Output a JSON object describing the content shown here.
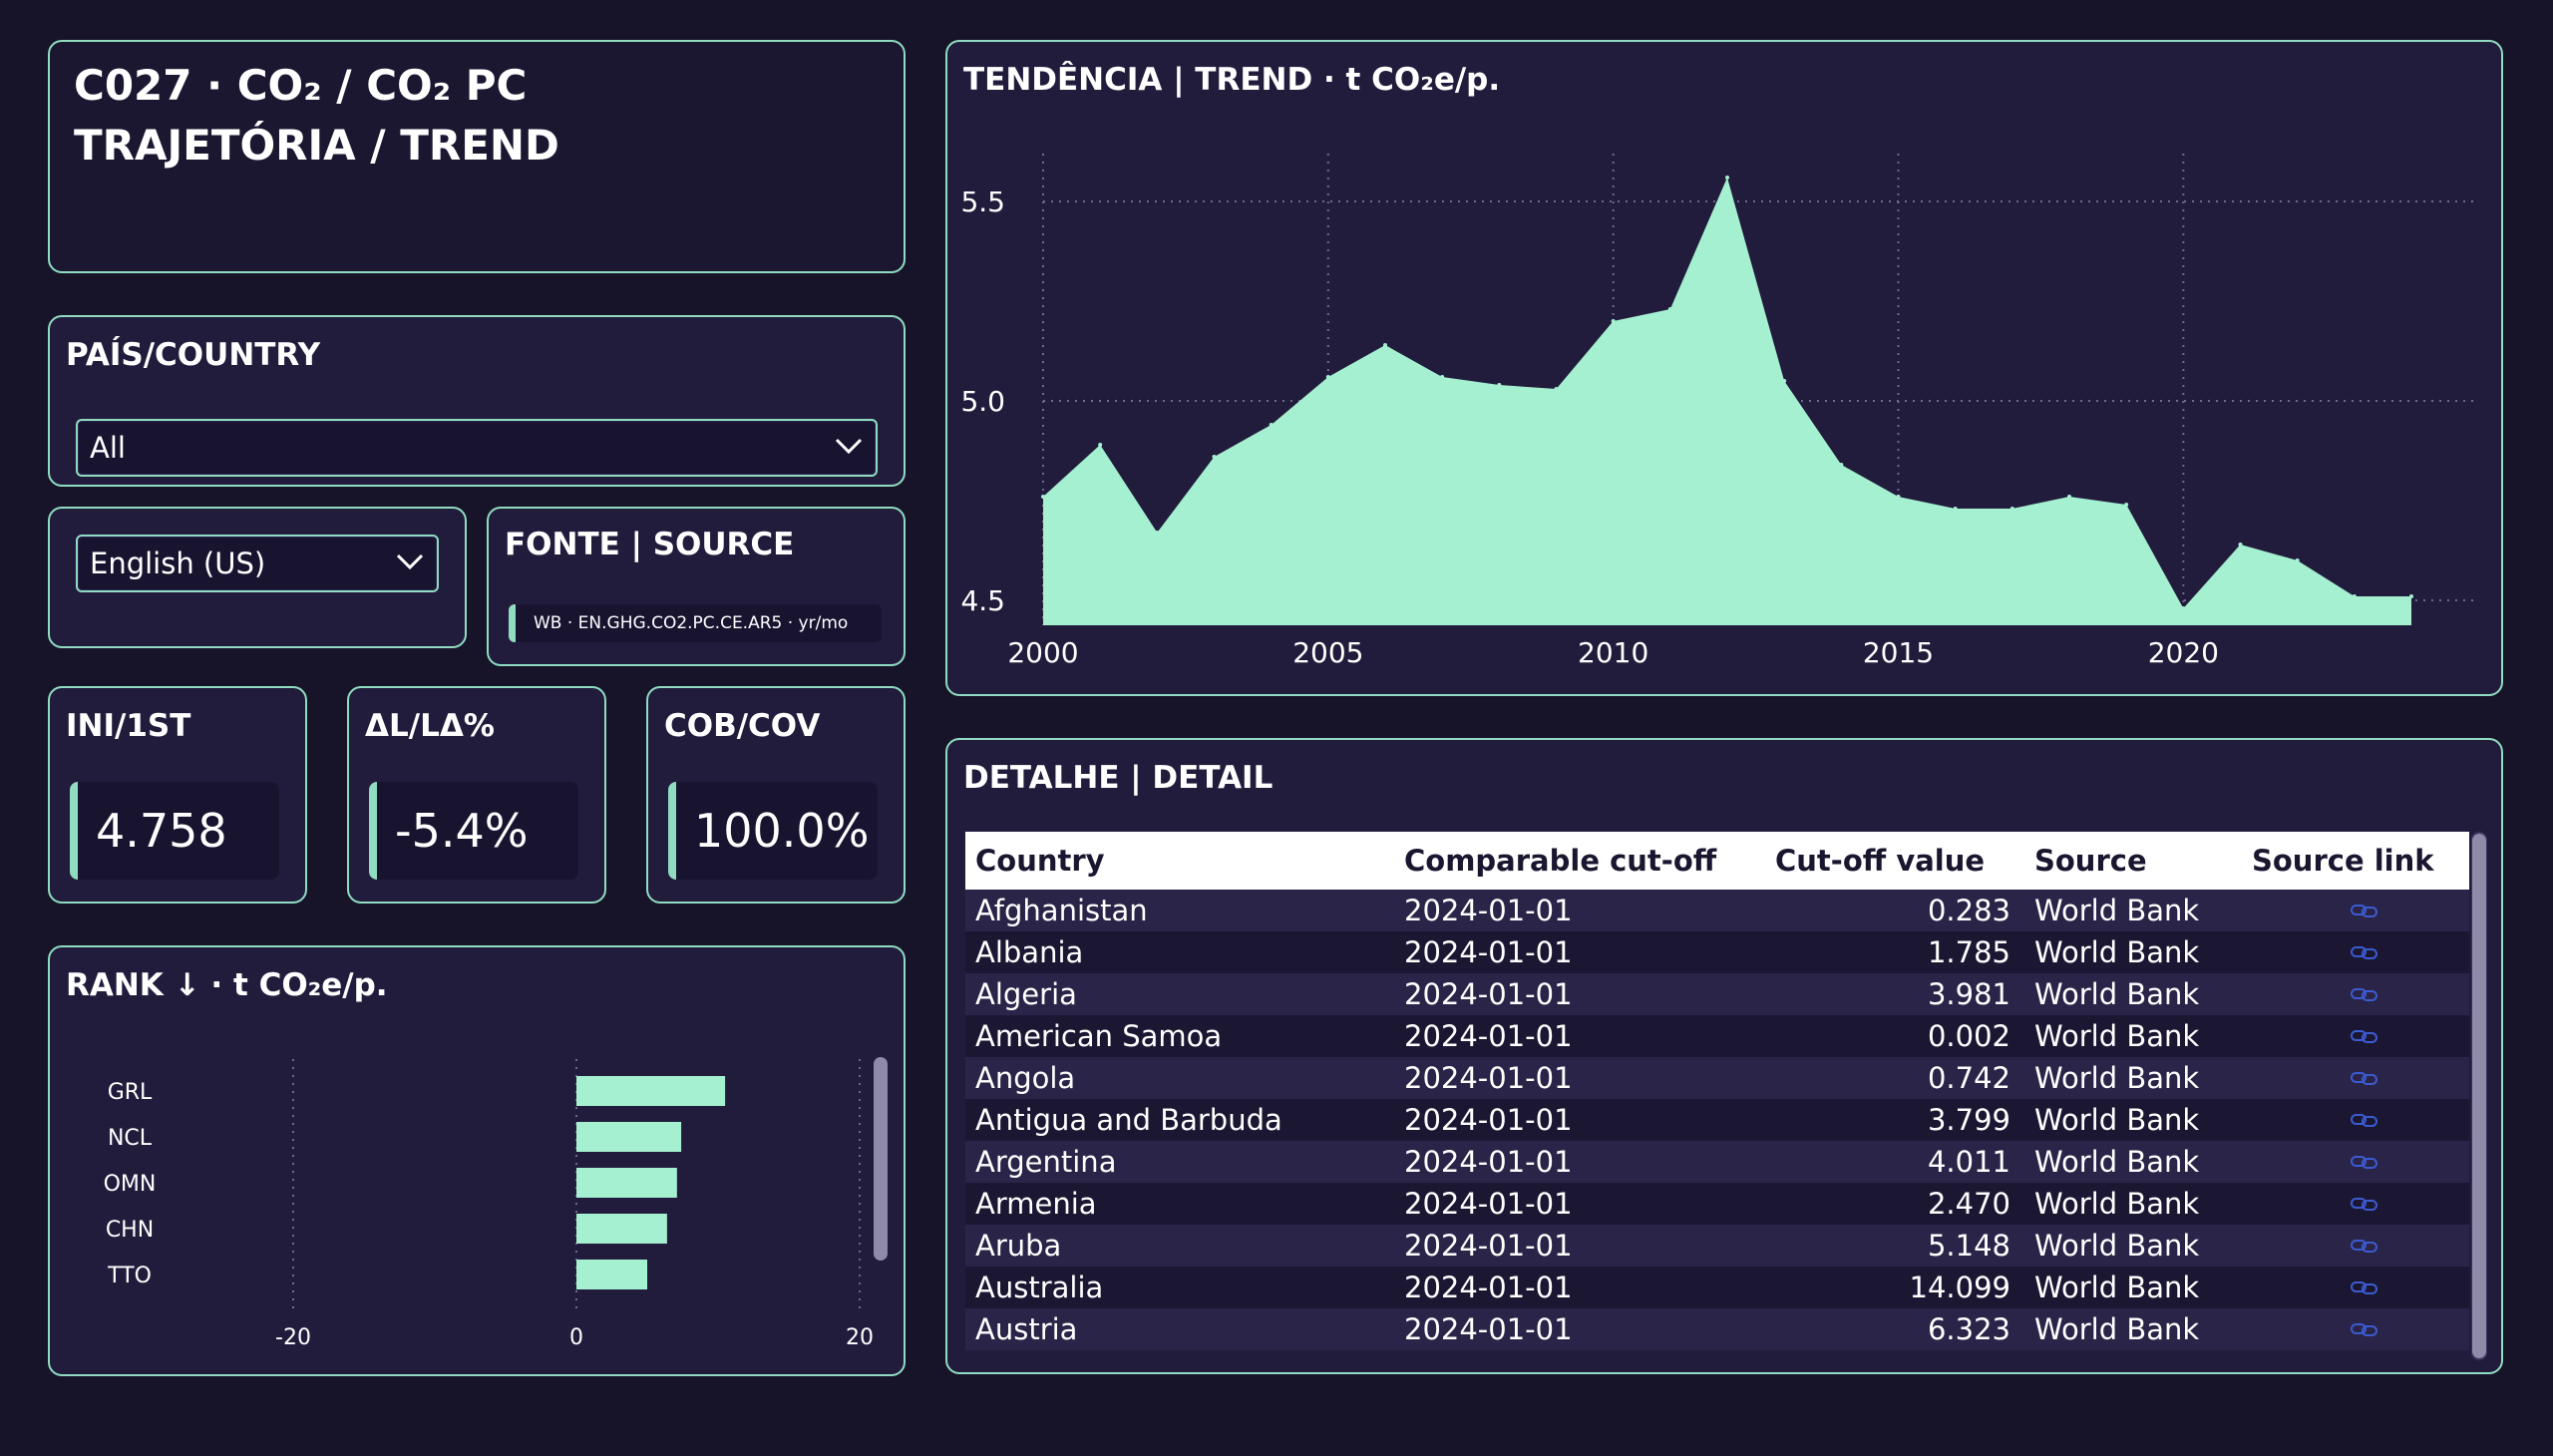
{
  "title": {
    "line1": "C027 · CO₂ / CO₂ PC",
    "line2": "TRAJETÓRIA / TREND"
  },
  "country_filter": {
    "label": "PAÍS/COUNTRY",
    "value": "All"
  },
  "language": {
    "value": "English (US)"
  },
  "source": {
    "label": "FONTE | SOURCE",
    "value": "WB · EN.GHG.CO2.PC.CE.AR5 · yr/mo"
  },
  "kpis": [
    {
      "label": "INI/1ST",
      "value": "4.758"
    },
    {
      "label": "ΔL/LΔ%",
      "value": "-5.4%"
    },
    {
      "label": "COB/COV",
      "value": "100.0%"
    }
  ],
  "colors": {
    "accent": "#a6f0d2",
    "card_bg": "#221c3c",
    "border": "#8fdcc0",
    "page_bg": "#17142a"
  },
  "rank_chart": {
    "title": "RANK ↓ · t CO₂e/p.",
    "chart_data": {
      "type": "bar",
      "orientation": "horizontal",
      "categories": [
        "GRL",
        "NCL",
        "OMN",
        "CHN",
        "TTO"
      ],
      "values": [
        10.5,
        7.4,
        7.1,
        6.4,
        5.0
      ],
      "xlim": [
        -20,
        20
      ],
      "xticks": [
        "-20",
        "0",
        "20"
      ],
      "grid": true
    }
  },
  "trend_chart": {
    "title": "TENDÊNCIA | TREND · t CO₂e/p.",
    "chart_data": {
      "type": "area",
      "x": [
        2000,
        2001,
        2002,
        2003,
        2004,
        2005,
        2006,
        2007,
        2008,
        2009,
        2010,
        2011,
        2012,
        2013,
        2014,
        2015,
        2016,
        2017,
        2018,
        2019,
        2020,
        2021,
        2022,
        2023,
        2024
      ],
      "values": [
        4.76,
        4.89,
        4.67,
        4.86,
        4.94,
        5.06,
        5.14,
        5.06,
        5.04,
        5.03,
        5.2,
        5.23,
        5.56,
        5.05,
        4.84,
        4.76,
        4.73,
        4.73,
        4.76,
        4.74,
        4.48,
        4.64,
        4.6,
        4.51,
        4.51
      ],
      "xticks": [
        "2000",
        "2005",
        "2010",
        "2015",
        "2020"
      ],
      "yticks": [
        "4.5",
        "5.0",
        "5.5"
      ],
      "ylim": [
        4.4,
        5.62
      ],
      "xlim": [
        2000,
        2024
      ],
      "grid": true
    }
  },
  "detail": {
    "title": "DETALHE | DETAIL",
    "columns": [
      "Country",
      "Comparable cut-off",
      "Cut-off value",
      "Source",
      "Source link"
    ],
    "rows": [
      [
        "Afghanistan",
        "2024-01-01",
        "0.283",
        "World Bank"
      ],
      [
        "Albania",
        "2024-01-01",
        "1.785",
        "World Bank"
      ],
      [
        "Algeria",
        "2024-01-01",
        "3.981",
        "World Bank"
      ],
      [
        "American Samoa",
        "2024-01-01",
        "0.002",
        "World Bank"
      ],
      [
        "Angola",
        "2024-01-01",
        "0.742",
        "World Bank"
      ],
      [
        "Antigua and Barbuda",
        "2024-01-01",
        "3.799",
        "World Bank"
      ],
      [
        "Argentina",
        "2024-01-01",
        "4.011",
        "World Bank"
      ],
      [
        "Armenia",
        "2024-01-01",
        "2.470",
        "World Bank"
      ],
      [
        "Aruba",
        "2024-01-01",
        "5.148",
        "World Bank"
      ],
      [
        "Australia",
        "2024-01-01",
        "14.099",
        "World Bank"
      ],
      [
        "Austria",
        "2024-01-01",
        "6.323",
        "World Bank"
      ]
    ],
    "link_icon": "link-icon"
  }
}
